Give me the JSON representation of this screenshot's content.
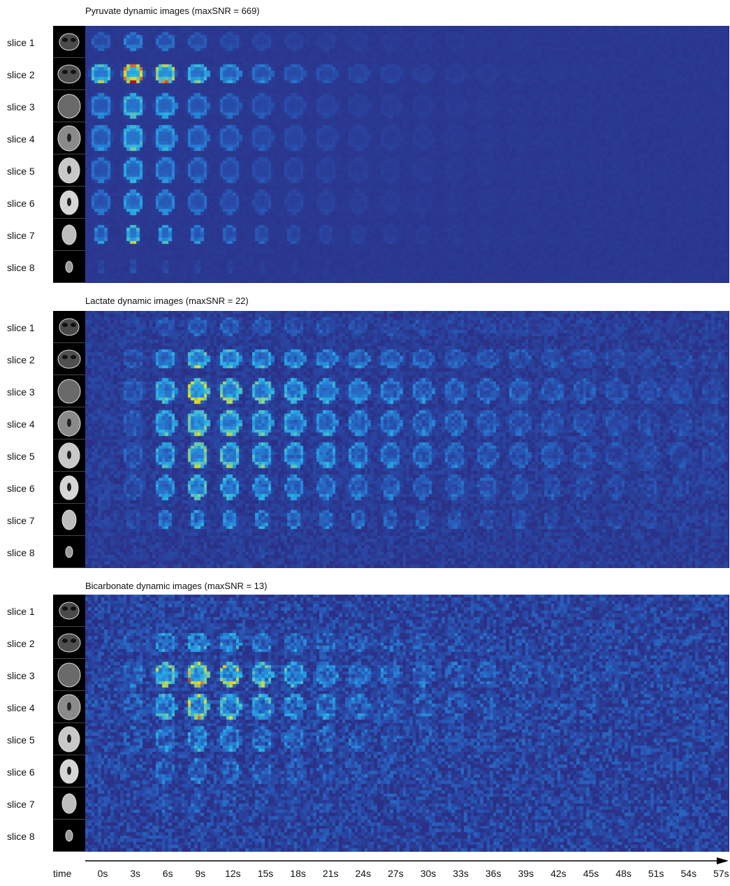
{
  "panels": [
    {
      "id": "pyruvate",
      "title": "Pyruvate dynamic images (maxSNR = 669)",
      "metabolite": "Pyruvate",
      "max_snr": 669
    },
    {
      "id": "lactate",
      "title": "Lactate dynamic images (maxSNR = 22)",
      "metabolite": "Lactate",
      "max_snr": 22
    },
    {
      "id": "bicarbonate",
      "title": "Bicarbonate dynamic images (maxSNR = 13)",
      "metabolite": "Bicarbonate",
      "max_snr": 13
    }
  ],
  "slices": [
    "slice 1",
    "slice 2",
    "slice 3",
    "slice 4",
    "slice 5",
    "slice 6",
    "slice 7",
    "slice 8"
  ],
  "time_axis": {
    "label": "time",
    "ticks": [
      "0s",
      "3s",
      "6s",
      "9s",
      "12s",
      "15s",
      "18s",
      "21s",
      "24s",
      "27s",
      "30s",
      "33s",
      "36s",
      "39s",
      "42s",
      "45s",
      "48s",
      "51s",
      "54s",
      "57s"
    ]
  },
  "colormap": {
    "low": "#2b2f85",
    "mid": "#27a9e1",
    "high_mid": "#f5e10f",
    "high": "#b5121b"
  },
  "icons": {
    "anatomical_thumbnail": "brain-mri-icon",
    "axis_arrow": "arrow-right-icon"
  }
}
